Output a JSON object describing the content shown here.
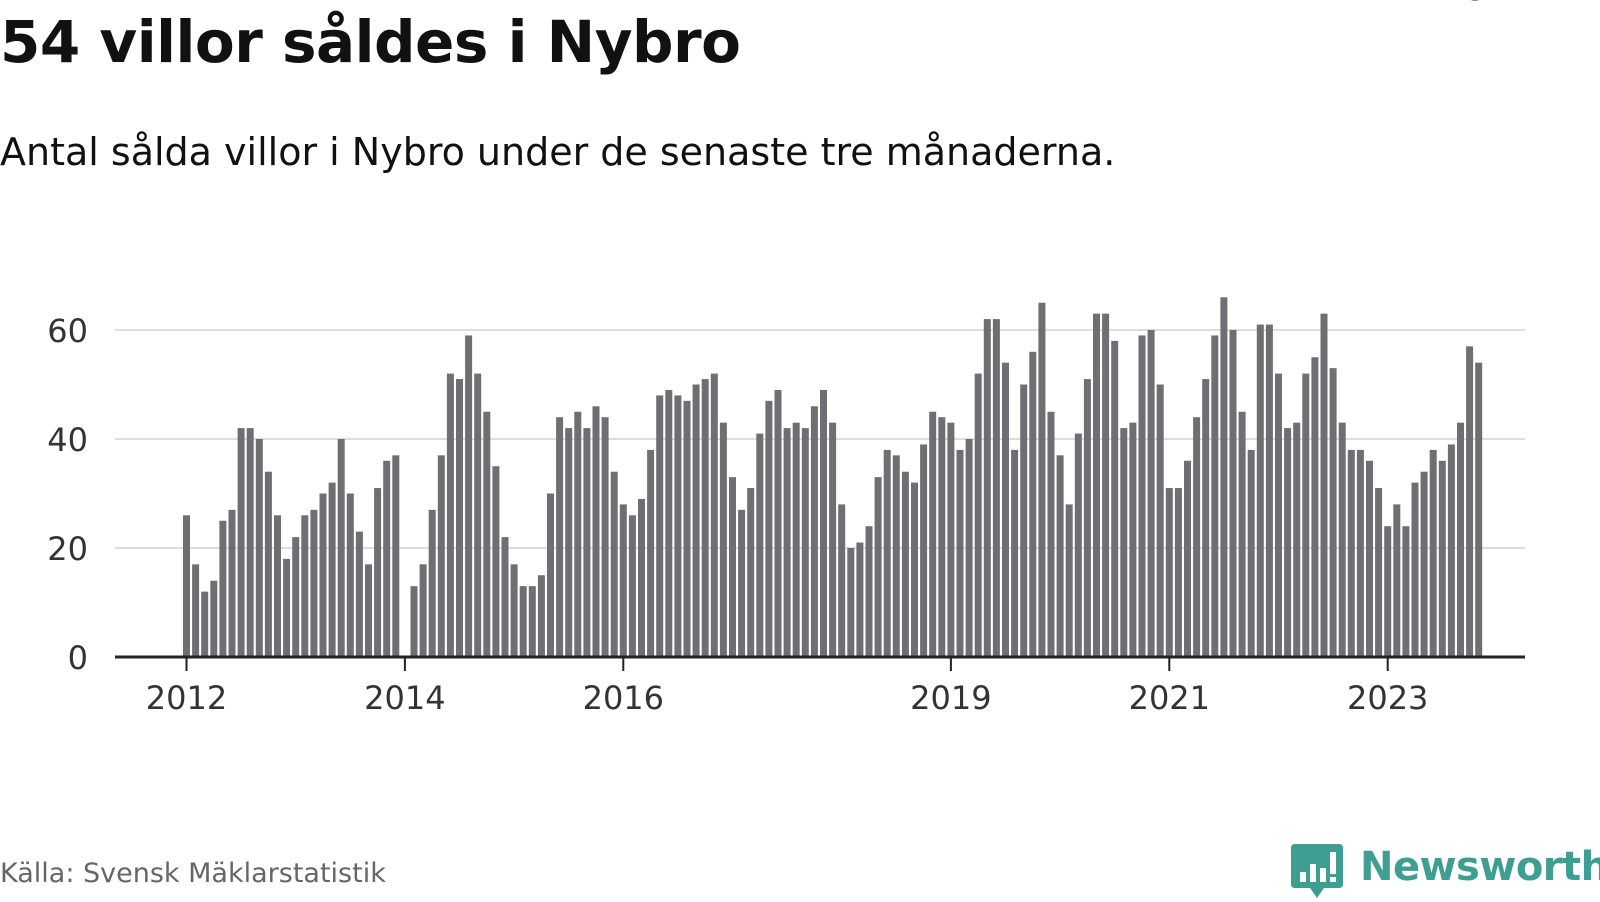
{
  "title": "54 villor såldes i Nybro",
  "subtitle": "Antal sålda villor i Nybro under de senaste tre månaderna.",
  "source": "Källa: Svensk Mäklarstatistik",
  "brand": {
    "name": "Newsworthy",
    "icon": "newsworthy-bar-chart-icon"
  },
  "colors": {
    "bar": "#6f6e73",
    "highlight": "#12a89c",
    "brand": "#3e9e92",
    "grid": "#dddddd",
    "axis": "#222222"
  },
  "chart_data": {
    "type": "bar",
    "title": "54 villor såldes i Nybro",
    "ylabel": "",
    "xlabel": "",
    "ylim": [
      0,
      70
    ],
    "yticks": [
      "0",
      "20",
      "40",
      "60"
    ],
    "xticks": [
      {
        "label": "2012",
        "index": 0
      },
      {
        "label": "2014",
        "index": 24
      },
      {
        "label": "2016",
        "index": 48
      },
      {
        "label": "2019",
        "index": 84
      },
      {
        "label": "2021",
        "index": 108
      },
      {
        "label": "2023",
        "index": 132
      }
    ],
    "grid": true,
    "start": "2012-01",
    "interval": "month",
    "values": [
      26,
      17,
      12,
      14,
      25,
      27,
      42,
      42,
      40,
      34,
      26,
      18,
      22,
      26,
      27,
      30,
      32,
      40,
      30,
      23,
      17,
      31,
      36,
      37,
      0,
      13,
      17,
      27,
      37,
      52,
      51,
      59,
      52,
      45,
      35,
      22,
      17,
      13,
      13,
      15,
      30,
      44,
      42,
      45,
      42,
      46,
      44,
      34,
      28,
      26,
      29,
      38,
      48,
      49,
      48,
      47,
      50,
      51,
      52,
      43,
      33,
      27,
      31,
      41,
      47,
      49,
      42,
      43,
      42,
      46,
      49,
      43,
      28,
      20,
      21,
      24,
      33,
      38,
      37,
      34,
      32,
      39,
      45,
      44,
      43,
      38,
      40,
      52,
      62,
      62,
      54,
      38,
      50,
      56,
      65,
      45,
      37,
      28,
      41,
      51,
      63,
      63,
      58,
      42,
      43,
      59,
      60,
      50,
      31,
      31,
      36,
      44,
      51,
      59,
      66,
      60,
      45,
      38,
      61,
      61,
      52,
      42,
      43,
      52,
      55,
      63,
      53,
      43,
      38,
      38,
      36,
      31,
      24,
      28,
      24,
      32,
      34,
      38,
      36,
      39,
      43,
      57,
      54
    ],
    "highlight_index": 143,
    "highlight_label": "54"
  }
}
